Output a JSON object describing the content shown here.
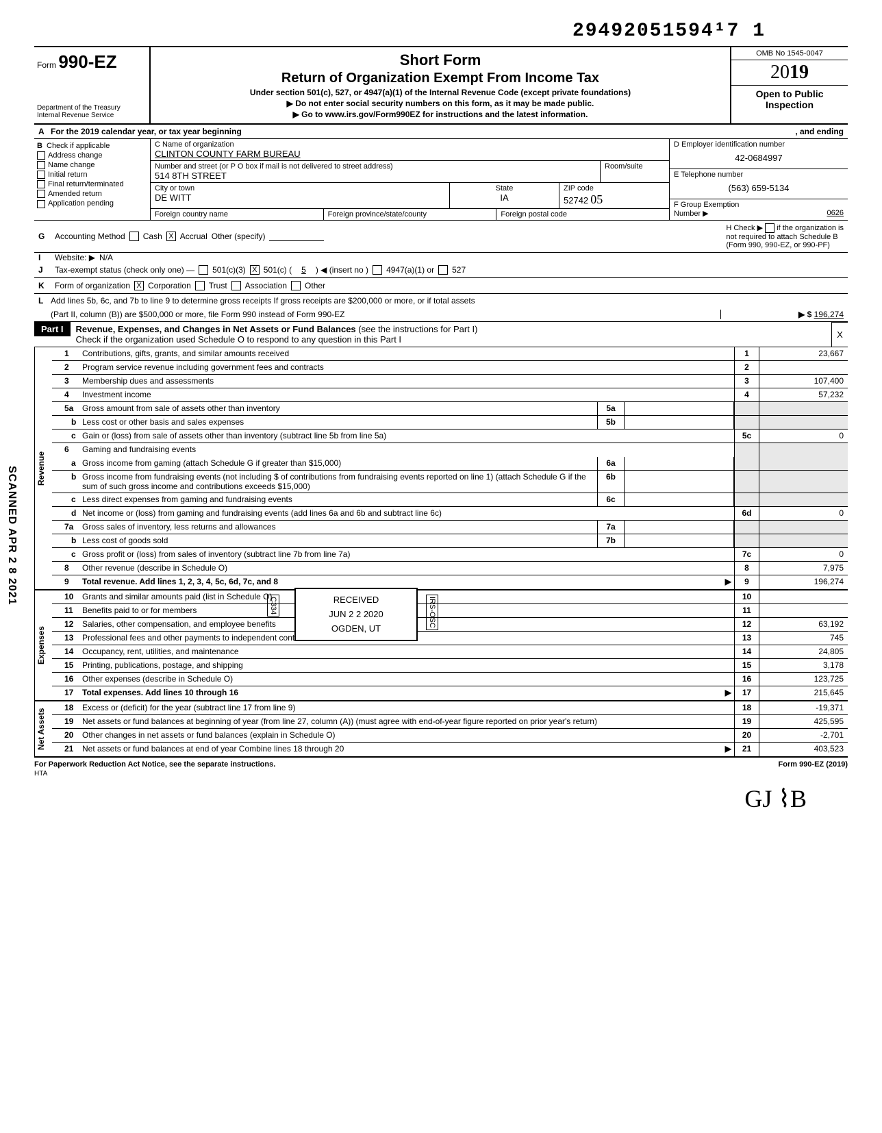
{
  "top_number": "29492051594¹7 1",
  "form": {
    "form_label": "Form",
    "form_number": "990-EZ",
    "dept1": "Department of the Treasury",
    "dept2": "Internal Revenue Service",
    "title1": "Short Form",
    "title2": "Return of Organization Exempt From Income Tax",
    "sub1": "Under section 501(c), 527, or 4947(a)(1) of the Internal Revenue Code (except private foundations)",
    "sub2": "▶ Do not enter social security numbers on this form, as it may be made public.",
    "sub3": "▶ Go to www.irs.gov/Form990EZ for instructions and the latest information.",
    "omb": "OMB No 1545-0047",
    "year_prefix": "20",
    "year_suffix": "19",
    "open1": "Open to Public",
    "open2": "Inspection"
  },
  "rowA": "For the 2019 calendar year, or tax year beginning",
  "rowA_end": ", and ending",
  "sectionB": {
    "header": "Check if applicable",
    "items": [
      "Address change",
      "Name change",
      "Initial return",
      "Final return/terminated",
      "Amended return",
      "Application pending"
    ]
  },
  "sectionC": {
    "name_lbl": "C  Name of organization",
    "name": "CLINTON COUNTY FARM BUREAU",
    "street_lbl": "Number and street (or P O box if mail is not delivered to street address)",
    "room_lbl": "Room/suite",
    "street": "514 8TH STREET",
    "city_lbl": "City or town",
    "state_lbl": "State",
    "zip_lbl": "ZIP code",
    "city": "DE WITT",
    "state": "IA",
    "zip": "52742",
    "zip_hand": "05",
    "foreign1": "Foreign country name",
    "foreign2": "Foreign province/state/county",
    "foreign3": "Foreign postal code"
  },
  "sectionD": {
    "ein_lbl": "D  Employer identification number",
    "ein": "42-0684997",
    "tel_lbl": "E  Telephone number",
    "tel": "(563) 659-5134",
    "grp_lbl": "F  Group Exemption",
    "grp_lbl2": "Number ▶",
    "grp": "0626"
  },
  "rowG": {
    "label": "Accounting Method",
    "opt1": "Cash",
    "opt2": "Accrual",
    "opt3": "Other (specify)",
    "h_lbl": "H Check ▶",
    "h_txt1": "if the organization is",
    "h_txt2": "not required to attach Schedule B",
    "h_txt3": "(Form 990, 990-EZ, or 990-PF)"
  },
  "rowI": {
    "label": "Website: ▶",
    "val": "N/A"
  },
  "rowJ": {
    "label": "Tax-exempt status (check only one) —",
    "o1": "501(c)(3)",
    "o2": "501(c) (",
    "o2n": "5",
    "o2t": ") ◀ (insert no )",
    "o3": "4947(a)(1) or",
    "o4": "527"
  },
  "rowK": {
    "label": "Form of organization",
    "o1": "Corporation",
    "o2": "Trust",
    "o3": "Association",
    "o4": "Other"
  },
  "rowL": {
    "l1": "Add lines 5b, 6c, and 7b to line 9 to determine gross receipts  If gross receipts are $200,000 or more, or if total assets",
    "l2": "(Part II, column (B)) are $500,000 or more, file Form 990 instead of Form 990-EZ",
    "arrow": "▶ $",
    "amt": "196,274"
  },
  "part1": {
    "tab": "Part I",
    "t1": "Revenue, Expenses, and Changes in Net Assets or Fund Balances",
    "t2": " (see the instructions for Part I)",
    "t3": "Check if the organization used Schedule O to respond to any question in this Part I",
    "chk": "X"
  },
  "revenue_label": "Revenue",
  "expenses_label": "Expenses",
  "netassets_label": "Net Assets",
  "lines": {
    "l1": {
      "n": "1",
      "d": "Contributions, gifts, grants, and similar amounts received",
      "rn": "1",
      "rv": "23,667"
    },
    "l2": {
      "n": "2",
      "d": "Program service revenue including government fees and contracts",
      "rn": "2",
      "rv": ""
    },
    "l3": {
      "n": "3",
      "d": "Membership dues and assessments",
      "rn": "3",
      "rv": "107,400"
    },
    "l4": {
      "n": "4",
      "d": "Investment income",
      "rn": "4",
      "rv": "57,232"
    },
    "l5a": {
      "n": "5a",
      "d": "Gross amount from sale of assets other than inventory",
      "mn": "5a",
      "mv": ""
    },
    "l5b": {
      "n": "b",
      "d": "Less  cost or other basis and sales expenses",
      "mn": "5b",
      "mv": ""
    },
    "l5c": {
      "n": "c",
      "d": "Gain or (loss) from sale of assets other than inventory (subtract line 5b from line 5a)",
      "rn": "5c",
      "rv": "0"
    },
    "l6": {
      "n": "6",
      "d": "Gaming and fundraising events"
    },
    "l6a": {
      "n": "a",
      "d": "Gross income from gaming (attach Schedule G if greater than $15,000)",
      "mn": "6a",
      "mv": ""
    },
    "l6b": {
      "n": "b",
      "d": "Gross income from fundraising events (not including      $                       of contributions from fundraising events reported on line 1) (attach Schedule G if the sum of such gross income and contributions exceeds $15,000)",
      "mn": "6b",
      "mv": ""
    },
    "l6c": {
      "n": "c",
      "d": "Less  direct expenses from gaming and fundraising events",
      "mn": "6c",
      "mv": ""
    },
    "l6d": {
      "n": "d",
      "d": "Net income or (loss) from gaming and fundraising events (add lines 6a and 6b and subtract line 6c)",
      "rn": "6d",
      "rv": "0"
    },
    "l7a": {
      "n": "7a",
      "d": "Gross sales of inventory, less returns and allowances",
      "mn": "7a",
      "mv": ""
    },
    "l7b": {
      "n": "b",
      "d": "Less  cost of goods sold",
      "mn": "7b",
      "mv": ""
    },
    "l7c": {
      "n": "c",
      "d": "Gross profit or (loss) from sales of inventory (subtract line 7b from line 7a)",
      "rn": "7c",
      "rv": "0"
    },
    "l8": {
      "n": "8",
      "d": "Other revenue (describe in Schedule O)",
      "rn": "8",
      "rv": "7,975"
    },
    "l9": {
      "n": "9",
      "d": "Total revenue. Add lines 1, 2, 3, 4, 5c, 6d, 7c, and 8",
      "rn": "9",
      "rv": "196,274",
      "arrow": "▶"
    },
    "l10": {
      "n": "10",
      "d": "Grants and similar amounts paid (list in Schedule O)",
      "rn": "10",
      "rv": ""
    },
    "l11": {
      "n": "11",
      "d": "Benefits paid to or for members",
      "rn": "11",
      "rv": ""
    },
    "l12": {
      "n": "12",
      "d": "Salaries, other compensation, and employee benefits",
      "rn": "12",
      "rv": "63,192"
    },
    "l13": {
      "n": "13",
      "d": "Professional fees and other payments to independent contractors",
      "rn": "13",
      "rv": "745"
    },
    "l14": {
      "n": "14",
      "d": "Occupancy, rent, utilities, and maintenance",
      "rn": "14",
      "rv": "24,805"
    },
    "l15": {
      "n": "15",
      "d": "Printing, publications, postage, and shipping",
      "rn": "15",
      "rv": "3,178"
    },
    "l16": {
      "n": "16",
      "d": "Other expenses (describe in Schedule O)",
      "rn": "16",
      "rv": "123,725"
    },
    "l17": {
      "n": "17",
      "d": "Total expenses. Add lines 10 through 16",
      "rn": "17",
      "rv": "215,645",
      "arrow": "▶"
    },
    "l18": {
      "n": "18",
      "d": "Excess or (deficit) for the year (subtract line 17 from line 9)",
      "rn": "18",
      "rv": "-19,371"
    },
    "l19": {
      "n": "19",
      "d": "Net assets or fund balances at beginning of year (from line 27, column (A)) (must agree with end-of-year figure reported on prior year's return)",
      "rn": "19",
      "rv": "425,595"
    },
    "l20": {
      "n": "20",
      "d": "Other changes in net assets or fund balances (explain in Schedule O)",
      "rn": "20",
      "rv": "-2,701"
    },
    "l21": {
      "n": "21",
      "d": "Net assets or fund balances at end of year  Combine lines 18 through 20",
      "rn": "21",
      "rv": "403,523",
      "arrow": "▶"
    }
  },
  "stamp": {
    "l1": "RECEIVED",
    "l2": "JUN 2 2 2020",
    "l3": "OGDEN, UT",
    "code": "C334",
    "code2": "IRS-OSC"
  },
  "footer": {
    "l": "For Paperwork Reduction Act Notice, see the separate instructions.",
    "r": "Form 990-EZ (2019)",
    "hta": "HTA"
  },
  "scanned": "SCANNED APR 2 8 2021",
  "sig": "GJ   ⌇B"
}
